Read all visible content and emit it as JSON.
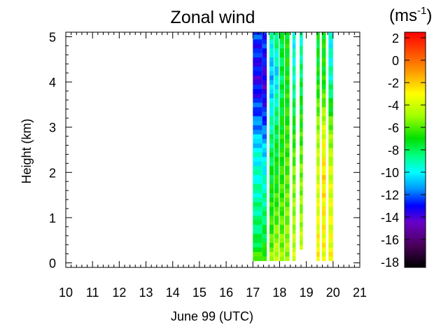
{
  "chart_data": {
    "type": "heatmap",
    "title": "Zonal wind",
    "xlabel": "June 99 (UTC)",
    "ylabel": "Height (km)",
    "x_ticks": [
      "10",
      "11",
      "12",
      "13",
      "14",
      "15",
      "16",
      "17",
      "18",
      "19",
      "20",
      "21"
    ],
    "y_ticks": [
      "0",
      "1",
      "2",
      "3",
      "4",
      "5"
    ],
    "xlim": [
      10,
      21
    ],
    "ylim": [
      -0.1,
      5.1
    ],
    "colorbar": {
      "unit_base": "(ms",
      "unit_exp": "-1",
      "unit_close": ")",
      "ticks": [
        "2",
        "0",
        "-2",
        "-4",
        "-6",
        "-8",
        "-10",
        "-12",
        "-14",
        "-16",
        "-18"
      ],
      "range": [
        -18.5,
        2.5
      ],
      "colors": [
        {
          "v": -18.5,
          "c": "#000000"
        },
        {
          "v": -16.5,
          "c": "#4a005a"
        },
        {
          "v": -14.5,
          "c": "#6a00c8"
        },
        {
          "v": -13.0,
          "c": "#0000ff"
        },
        {
          "v": -11.5,
          "c": "#0096ff"
        },
        {
          "v": -10.0,
          "c": "#00ffff"
        },
        {
          "v": -8.5,
          "c": "#00ff80"
        },
        {
          "v": -7.0,
          "c": "#00e000"
        },
        {
          "v": -5.0,
          "c": "#a0ff00"
        },
        {
          "v": -3.0,
          "c": "#ffff00"
        },
        {
          "v": -1.0,
          "c": "#ff9900"
        },
        {
          "v": 1.0,
          "c": "#ff4000"
        },
        {
          "v": 2.5,
          "c": "#ff0000"
        }
      ]
    },
    "columns": [
      {
        "t0": 17.0,
        "t1": 17.35,
        "profile": [
          [
            0.05,
            -6
          ],
          [
            0.5,
            -8
          ],
          [
            1.5,
            -9
          ],
          [
            2.5,
            -10
          ],
          [
            3.0,
            -11.5
          ],
          [
            3.5,
            -12.5
          ],
          [
            4.0,
            -13.5
          ],
          [
            4.5,
            -13
          ],
          [
            5.1,
            -12.5
          ]
        ]
      },
      {
        "t0": 17.35,
        "t1": 17.52,
        "profile": [
          [
            0.05,
            -6
          ],
          [
            0.5,
            -7.5
          ],
          [
            1.5,
            -9
          ],
          [
            2.5,
            -10.5
          ],
          [
            3.0,
            -12
          ],
          [
            3.5,
            -13
          ],
          [
            4.0,
            -14
          ],
          [
            4.5,
            -13
          ],
          [
            5.1,
            -12.5
          ]
        ]
      },
      {
        "t0": 17.62,
        "t1": 17.78,
        "profile": [
          [
            0.05,
            -5
          ],
          [
            0.5,
            -6
          ],
          [
            1.0,
            -6.5
          ],
          [
            2.0,
            -7.5
          ],
          [
            2.8,
            -8.5
          ],
          [
            3.5,
            -10
          ],
          [
            4.2,
            -11
          ],
          [
            5.1,
            -9
          ]
        ]
      },
      {
        "t0": 17.8,
        "t1": 17.97,
        "profile": [
          [
            0.05,
            -4
          ],
          [
            0.5,
            -5
          ],
          [
            1.0,
            -6
          ],
          [
            2.0,
            -7
          ],
          [
            3.0,
            -8
          ],
          [
            3.5,
            -9
          ],
          [
            4.2,
            -10.5
          ],
          [
            5.1,
            -8
          ]
        ]
      },
      {
        "t0": 18.0,
        "t1": 18.17,
        "profile": [
          [
            0.05,
            -5
          ],
          [
            0.5,
            -5.5
          ],
          [
            1.0,
            -6
          ],
          [
            2.0,
            -6.5
          ],
          [
            3.0,
            -7
          ],
          [
            4.0,
            -8
          ],
          [
            5.1,
            -7.5
          ]
        ]
      },
      {
        "t0": 18.2,
        "t1": 18.37,
        "profile": [
          [
            0.05,
            -5
          ],
          [
            0.5,
            -5
          ],
          [
            1.0,
            -5.5
          ],
          [
            2.0,
            -6
          ],
          [
            3.0,
            -6.5
          ],
          [
            4.0,
            -7
          ],
          [
            5.1,
            -7
          ]
        ]
      },
      {
        "t0": 18.48,
        "t1": 18.6,
        "profile": [
          [
            0.05,
            -4
          ],
          [
            0.5,
            -4.5
          ],
          [
            1.0,
            -5
          ],
          [
            2.0,
            -5.5
          ],
          [
            3.0,
            -7
          ],
          [
            4.0,
            -9
          ],
          [
            5.1,
            -10
          ]
        ]
      },
      {
        "t0": 18.75,
        "t1": 18.87,
        "profile": [
          [
            0.3,
            -4
          ],
          [
            0.6,
            -4.5
          ],
          [
            1.0,
            -5
          ],
          [
            2.0,
            -5.5
          ],
          [
            3.0,
            -6.5
          ],
          [
            4.0,
            -8
          ],
          [
            5.1,
            -9.5
          ]
        ]
      },
      {
        "t0": 19.38,
        "t1": 19.5,
        "profile": [
          [
            0.05,
            -3
          ],
          [
            0.5,
            -3
          ],
          [
            1.0,
            -3.5
          ],
          [
            2.0,
            -4
          ],
          [
            3.0,
            -5
          ],
          [
            4.0,
            -7
          ],
          [
            5.1,
            -7.5
          ]
        ]
      },
      {
        "t0": 19.58,
        "t1": 19.73,
        "profile": [
          [
            0.05,
            -3.5
          ],
          [
            0.5,
            -3
          ],
          [
            1.0,
            -3
          ],
          [
            2.0,
            -2.5
          ],
          [
            3.0,
            -4
          ],
          [
            4.0,
            -7
          ],
          [
            5.1,
            -7
          ]
        ]
      },
      {
        "t0": 19.83,
        "t1": 20.0,
        "profile": [
          [
            0.05,
            -3
          ],
          [
            0.5,
            -3.5
          ],
          [
            1.0,
            -3.5
          ],
          [
            2.0,
            -4
          ],
          [
            3.0,
            -5.5
          ],
          [
            4.0,
            -9
          ],
          [
            5.1,
            -10
          ]
        ]
      }
    ]
  }
}
